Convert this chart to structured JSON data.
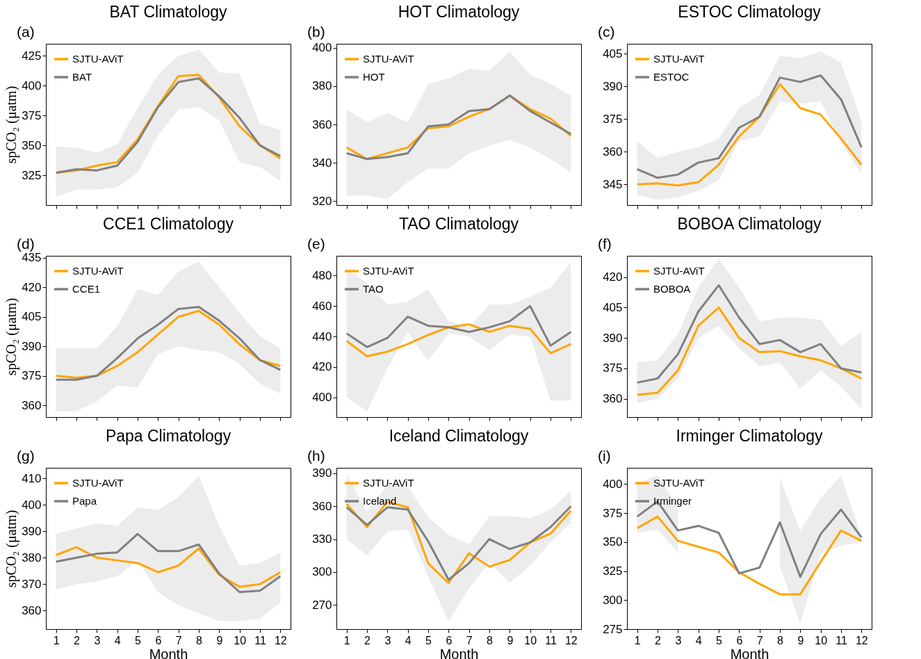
{
  "chart_data": [
    {
      "type": "line",
      "title": "BAT Climatology",
      "ylabel": "spCO₂ (μatm)",
      "annotations": [
        "(a)"
      ],
      "x": [
        1,
        2,
        3,
        4,
        5,
        6,
        7,
        8,
        9,
        10,
        11,
        12
      ],
      "xlim": [
        0.5,
        12.5
      ],
      "xticks": [
        1,
        2,
        3,
        4,
        5,
        6,
        7,
        8,
        9,
        10,
        11,
        12
      ],
      "ylim": [
        300,
        435
      ],
      "yticks": [
        325,
        350,
        375,
        400,
        425
      ],
      "tick_labels": "y",
      "legend": "top left",
      "marker": "none",
      "series": [
        {
          "name": "SJTU-AViT",
          "color": "#ffa500",
          "values": [
            327,
            329,
            333,
            336,
            355,
            383,
            408,
            409,
            390,
            366,
            350,
            339
          ]
        },
        {
          "name": "BAT",
          "color": "#808080",
          "values": [
            327,
            330,
            329,
            333,
            353,
            382,
            403,
            406,
            391,
            373,
            350,
            341
          ],
          "lower": [
            307,
            313,
            313,
            315,
            327,
            358,
            380,
            382,
            371,
            336,
            332,
            320
          ],
          "upper": [
            349,
            348,
            344,
            351,
            381,
            409,
            425,
            430,
            411,
            410,
            368,
            363
          ]
        }
      ]
    },
    {
      "type": "line",
      "title": "HOT Climatology",
      "annotations": [
        "(b)"
      ],
      "x": [
        1,
        2,
        3,
        4,
        5,
        6,
        7,
        8,
        9,
        10,
        11,
        12
      ],
      "xlim": [
        0.5,
        12.5
      ],
      "xticks": [
        1,
        2,
        3,
        4,
        5,
        6,
        7,
        8,
        9,
        10,
        11,
        12
      ],
      "ylim": [
        318,
        402
      ],
      "yticks": [
        320,
        340,
        360,
        380,
        400
      ],
      "tick_labels": "y",
      "legend": "top left",
      "marker": "none",
      "series": [
        {
          "name": "SJTU-AViT",
          "color": "#ffa500",
          "values": [
            348,
            342,
            345,
            348,
            358,
            359,
            364,
            368,
            375,
            368,
            363,
            354
          ]
        },
        {
          "name": "HOT",
          "color": "#808080",
          "values": [
            345,
            342,
            343,
            345,
            359,
            360,
            367,
            368,
            375,
            367,
            361,
            355
          ],
          "lower": [
            323,
            323,
            321,
            330,
            337,
            337,
            345,
            349,
            352,
            348,
            342,
            335
          ],
          "upper": [
            368,
            361,
            366,
            361,
            381,
            384,
            389,
            388,
            398,
            386,
            381,
            375
          ]
        }
      ]
    },
    {
      "type": "line",
      "title": "ESTOC Climatology",
      "annotations": [
        "(c)"
      ],
      "x": [
        1,
        2,
        3,
        4,
        5,
        6,
        7,
        8,
        9,
        10,
        11,
        12
      ],
      "xlim": [
        0.5,
        12.5
      ],
      "xticks": [
        1,
        2,
        3,
        4,
        5,
        6,
        7,
        8,
        9,
        10,
        11,
        12
      ],
      "ylim": [
        335.5,
        409.5
      ],
      "yticks": [
        345,
        360,
        375,
        390,
        405
      ],
      "tick_labels": "y",
      "legend": "top left",
      "marker": "none",
      "series": [
        {
          "name": "SJTU-AViT",
          "color": "#ffa500",
          "values": [
            345,
            345.5,
            344.5,
            346,
            354,
            367,
            376,
            391,
            380,
            377,
            366,
            354
          ]
        },
        {
          "name": "ESTOC",
          "color": "#808080",
          "values": [
            352,
            348,
            349.5,
            355,
            357,
            371,
            376,
            394,
            392,
            395,
            384,
            362
          ],
          "lower": [
            340,
            338,
            339,
            342,
            347,
            365,
            367,
            383,
            382,
            383,
            364,
            350
          ],
          "upper": [
            365,
            357,
            360,
            362,
            366,
            380,
            386,
            404,
            403,
            406,
            401,
            374
          ]
        }
      ]
    },
    {
      "type": "line",
      "title": "CCE1 Climatology",
      "ylabel": "spCO₂ (μatm)",
      "annotations": [
        "(d)"
      ],
      "x": [
        1,
        2,
        3,
        4,
        5,
        6,
        7,
        8,
        9,
        10,
        11,
        12
      ],
      "xlim": [
        0.5,
        12.5
      ],
      "xticks": [
        1,
        2,
        3,
        4,
        5,
        6,
        7,
        8,
        9,
        10,
        11,
        12
      ],
      "ylim": [
        354,
        436
      ],
      "yticks": [
        360,
        375,
        390,
        405,
        420,
        435
      ],
      "tick_labels": "y",
      "legend": "top left",
      "marker": "none",
      "series": [
        {
          "name": "SJTU-AViT",
          "color": "#ffa500",
          "values": [
            375,
            374,
            375,
            380,
            387,
            396,
            405,
            408,
            401,
            391,
            383,
            380
          ]
        },
        {
          "name": "CCE1",
          "color": "#808080",
          "values": [
            373,
            373,
            375,
            384,
            394,
            401,
            409,
            410,
            403,
            394,
            383,
            378
          ],
          "lower": [
            357,
            357,
            362,
            370,
            369,
            386,
            390,
            388,
            387,
            381,
            371,
            366
          ],
          "upper": [
            389,
            389,
            389,
            400,
            419,
            416,
            428,
            433,
            420,
            407,
            395,
            389
          ]
        }
      ]
    },
    {
      "type": "line",
      "title": "TAO Climatology",
      "annotations": [
        "(e)"
      ],
      "x": [
        1,
        2,
        3,
        4,
        5,
        6,
        7,
        8,
        9,
        10,
        11,
        12
      ],
      "xlim": [
        0.5,
        12.5
      ],
      "xticks": [
        1,
        2,
        3,
        4,
        5,
        6,
        7,
        8,
        9,
        10,
        11,
        12
      ],
      "ylim": [
        387,
        493
      ],
      "yticks": [
        400,
        420,
        440,
        460,
        480
      ],
      "tick_labels": "y",
      "legend": "top left",
      "marker": "none",
      "series": [
        {
          "name": "SJTU-AViT",
          "color": "#ffa500",
          "values": [
            437,
            427,
            430,
            435,
            441,
            446,
            448,
            443,
            447,
            445,
            429,
            435
          ]
        },
        {
          "name": "TAO",
          "color": "#808080",
          "values": [
            442,
            433,
            439,
            453,
            447,
            446,
            443,
            446,
            450,
            460,
            434,
            443
          ],
          "lower": [
            400,
            391,
            419,
            443,
            424,
            442,
            440,
            431,
            441,
            440,
            398,
            398
          ],
          "upper": [
            485,
            475,
            461,
            463,
            471,
            450,
            446,
            461,
            461,
            466,
            472,
            489
          ]
        }
      ]
    },
    {
      "type": "line",
      "title": "BOBOA Climatology",
      "annotations": [
        "(f)"
      ],
      "x": [
        1,
        2,
        3,
        4,
        5,
        6,
        7,
        8,
        9,
        10,
        11,
        12
      ],
      "xlim": [
        0.5,
        12.5
      ],
      "xticks": [
        1,
        2,
        3,
        4,
        5,
        6,
        7,
        8,
        9,
        10,
        11,
        12
      ],
      "ylim": [
        351,
        430.5
      ],
      "yticks": [
        360,
        375,
        390,
        405,
        420
      ],
      "tick_labels": "y",
      "legend": "top left",
      "marker": "none",
      "series": [
        {
          "name": "SJTU-AViT",
          "color": "#ffa500",
          "values": [
            362,
            363,
            374,
            396,
            405,
            390,
            383,
            383.5,
            381,
            379,
            375,
            370
          ]
        },
        {
          "name": "BOBOA",
          "color": "#808080",
          "values": [
            368,
            370,
            382,
            403,
            416,
            400,
            387,
            389,
            383,
            387,
            375,
            373
          ],
          "lower": [
            358,
            360,
            370,
            390,
            396,
            385,
            376,
            378,
            365,
            374,
            366,
            355
          ],
          "upper": [
            378,
            379,
            392,
            415,
            429,
            415,
            398,
            400,
            400,
            399,
            386,
            393
          ]
        }
      ]
    },
    {
      "type": "line",
      "title": "Papa Climatology",
      "xlabel": "Month",
      "ylabel": "spCO₂ (μatm)",
      "annotations": [
        "(g)"
      ],
      "x": [
        1,
        2,
        3,
        4,
        5,
        6,
        7,
        8,
        9,
        10,
        11,
        12
      ],
      "xlim": [
        0.5,
        12.5
      ],
      "xticks": [
        1,
        2,
        3,
        4,
        5,
        6,
        7,
        8,
        9,
        10,
        11,
        12
      ],
      "ylim": [
        353,
        414
      ],
      "yticks": [
        360,
        370,
        380,
        390,
        400,
        410
      ],
      "legend": "top left",
      "marker": "none",
      "series": [
        {
          "name": "SJTU-AViT",
          "color": "#ffa500",
          "values": [
            381,
            384,
            380,
            379,
            378,
            374.5,
            377,
            383.5,
            373.5,
            369,
            370,
            374.5
          ]
        },
        {
          "name": "Papa",
          "color": "#808080",
          "values": [
            378.5,
            380,
            381.5,
            382,
            389,
            382.5,
            382.5,
            385,
            374,
            367,
            367.5,
            373
          ],
          "lower": [
            368,
            370,
            371,
            373,
            379,
            367,
            362,
            359,
            356,
            356,
            357,
            363
          ],
          "upper": [
            389,
            391,
            393,
            392,
            399,
            398,
            403,
            411,
            392,
            377,
            378,
            382
          ]
        }
      ]
    },
    {
      "type": "line",
      "title": "Iceland Climatology",
      "xlabel": "Month",
      "annotations": [
        "(h)"
      ],
      "x": [
        1,
        2,
        3,
        4,
        5,
        6,
        7,
        8,
        9,
        10,
        11,
        12
      ],
      "xlim": [
        0.5,
        12.5
      ],
      "xticks": [
        1,
        2,
        3,
        4,
        5,
        6,
        7,
        8,
        9,
        10,
        11,
        12
      ],
      "ylim": [
        248,
        395
      ],
      "yticks": [
        270,
        300,
        330,
        360,
        390
      ],
      "legend": "top left",
      "marker": "none",
      "series": [
        {
          "name": "SJTU-AViT",
          "color": "#ffa500",
          "values": [
            362,
            341,
            364,
            359,
            308,
            290,
            317,
            305,
            311,
            327,
            335,
            356
          ]
        },
        {
          "name": "Iceland",
          "color": "#808080",
          "values": [
            359,
            343,
            359,
            357,
            328,
            293,
            308,
            330,
            321,
            327,
            341,
            360
          ],
          "lower": [
            330,
            315,
            337,
            339,
            296,
            255,
            285,
            309,
            290,
            306,
            327,
            345
          ],
          "upper": [
            389,
            355,
            380,
            378,
            350,
            334,
            325,
            351,
            351,
            349,
            357,
            374
          ]
        }
      ]
    },
    {
      "type": "line",
      "title": "Irminger Climatology",
      "xlabel": "Month",
      "annotations": [
        "(i)"
      ],
      "x": [
        1,
        2,
        3,
        4,
        5,
        6,
        7,
        8,
        9,
        10,
        11,
        12
      ],
      "xlim": [
        0.5,
        12.5
      ],
      "xticks": [
        1,
        2,
        3,
        4,
        5,
        6,
        7,
        8,
        9,
        10,
        11,
        12
      ],
      "ylim": [
        275,
        414
      ],
      "yticks": [
        275,
        300,
        325,
        350,
        375,
        400
      ],
      "legend": "top left",
      "marker": "none",
      "series": [
        {
          "name": "SJTU-AViT",
          "color": "#ffa500",
          "values": [
            362,
            372,
            351,
            346,
            341,
            324,
            314,
            305,
            305,
            333,
            360,
            351
          ]
        },
        {
          "name": "Irminger",
          "color": "#808080",
          "values": [
            372,
            385,
            360,
            364,
            358,
            323,
            328,
            367,
            320,
            357,
            378,
            354
          ],
          "lower": [
            358,
            361,
            341,
            null,
            null,
            null,
            null,
            329,
            280,
            340,
            347,
            350
          ],
          "upper": [
            400,
            408,
            380,
            null,
            null,
            null,
            null,
            405,
            360,
            388,
            407,
            355
          ]
        }
      ]
    }
  ]
}
